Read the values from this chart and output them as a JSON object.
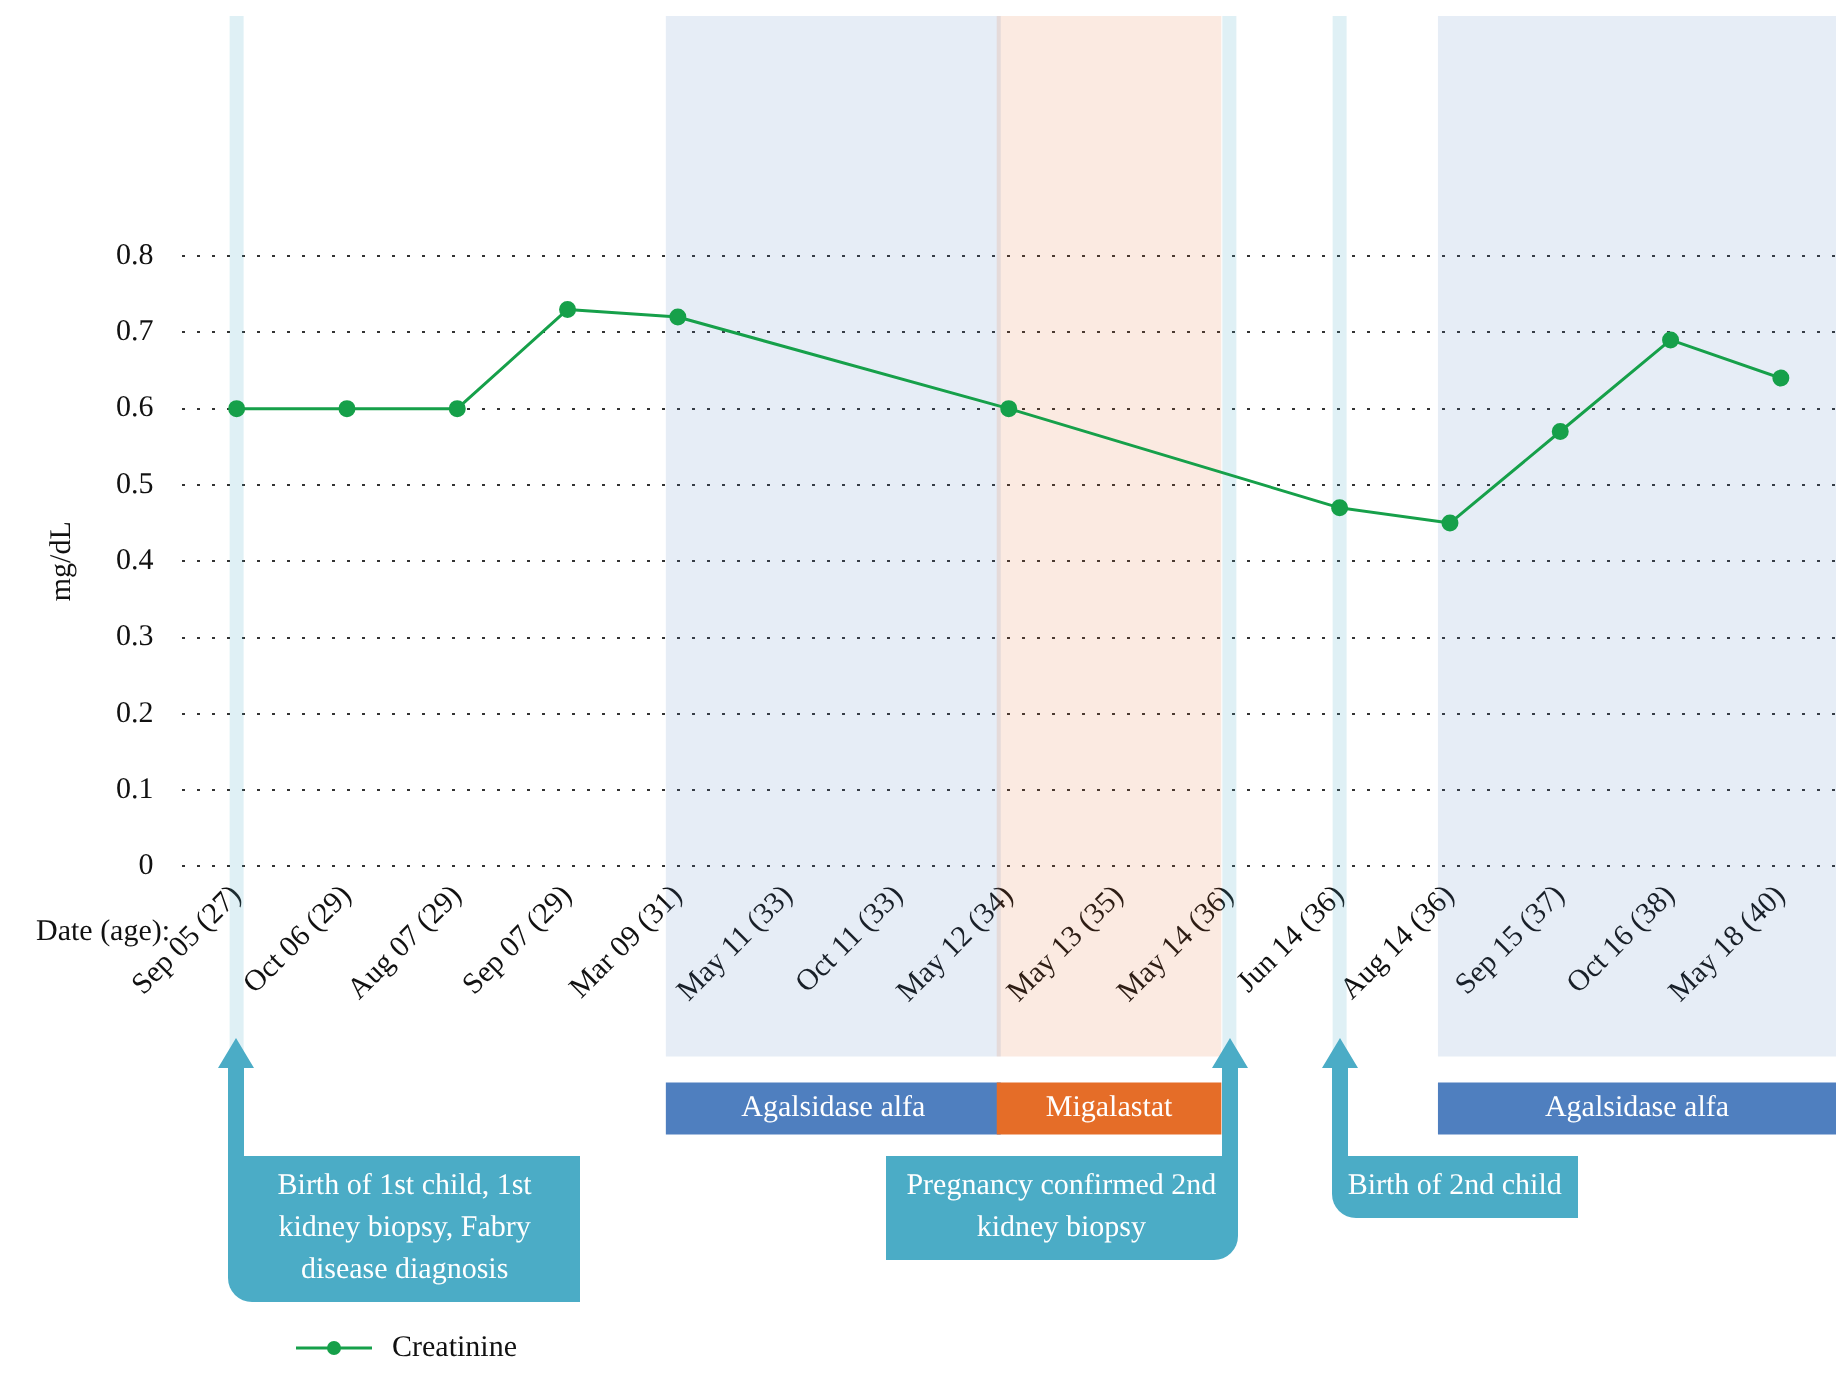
{
  "chart_data": {
    "type": "line",
    "xlabel": "Date (age):",
    "ylabel": "mg/dL",
    "categories": [
      "Sep 05 (27)",
      "Oct 06 (29)",
      "Aug 07 (29)",
      "Sep 07 (29)",
      "Mar 09 (31)",
      "May 11 (33)",
      "Oct 11 (33)",
      "May 12 (34)",
      "May 13 (35)",
      "May 14 (36)",
      "Jun 14 (36)",
      "Aug 14 (36)",
      "Sep 15 (37)",
      "Oct 16 (38)",
      "May 18 (40)"
    ],
    "series": [
      {
        "name": "Creatinine",
        "color": "#16a04a",
        "values": [
          0.6,
          0.6,
          0.6,
          0.73,
          0.72,
          null,
          null,
          0.6,
          null,
          null,
          0.47,
          0.45,
          0.57,
          0.69,
          0.64
        ]
      }
    ],
    "ylim": [
      0,
      0.8
    ],
    "yticks": [
      0,
      0.1,
      0.2,
      0.3,
      0.4,
      0.5,
      0.6,
      0.7,
      0.8
    ],
    "grid": "y",
    "marker": "circle",
    "line_style": "solid",
    "legend": "bottom left",
    "bands": [
      {
        "axis": "x",
        "from": "Mar 09 (31)",
        "to": "May 12 (34)",
        "label": "Agalsidase alfa",
        "color": "#4f7fbf"
      },
      {
        "axis": "x",
        "from": "May 12 (34)",
        "to": "May 14 (36)",
        "label": "Migalastat",
        "color": "#e56d28"
      },
      {
        "axis": "x",
        "from": "Aug 14 (36)",
        "to": "May 18 (40)",
        "label": "Agalsidase alfa",
        "color": "#4f7fbf"
      }
    ],
    "ref_lines": [
      {
        "axis": "x",
        "value": "Sep 05 (27)",
        "label": "Birth of 1st child, 1st kidney biopsy, Fabry disease diagnosis",
        "color": "#4bacc6"
      },
      {
        "axis": "x",
        "value": "May 14 (36)",
        "label": "Pregnancy confirmed 2nd kidney biopsy",
        "color": "#4bacc6"
      },
      {
        "axis": "x",
        "value": "Jun 14 (36)",
        "label": "Birth of 2nd child",
        "color": "#4bacc6"
      }
    ]
  }
}
